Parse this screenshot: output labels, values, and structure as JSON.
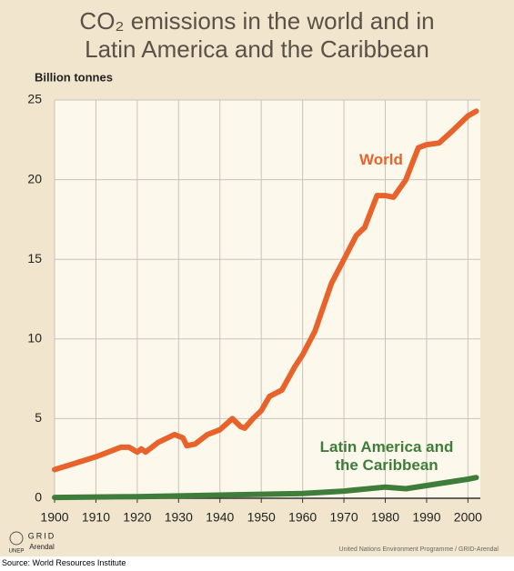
{
  "chart_data": {
    "type": "line",
    "title": "CO₂ emissions in the world and in Latin America and the Caribbean",
    "y_label": "Billion tonnes",
    "source": "Source: World Resources Institute",
    "credit": "United Nations Environment Programme / GRID-Arendal",
    "logo": [
      "UNEP",
      "GRID",
      "Arendal"
    ],
    "xlim": [
      1900,
      2003
    ],
    "xticks": [
      1900,
      1910,
      1920,
      1930,
      1940,
      1950,
      1960,
      1970,
      1980,
      1990,
      2000
    ],
    "ylim": [
      0,
      25
    ],
    "yticks": [
      0,
      5,
      10,
      15,
      20,
      25
    ],
    "grid": true,
    "series": [
      {
        "name": "World",
        "color": "#e8632b",
        "x": [
          1900,
          1905,
          1910,
          1913,
          1916,
          1918,
          1920,
          1921,
          1922,
          1925,
          1929,
          1931,
          1932,
          1934,
          1937,
          1940,
          1943,
          1945,
          1946,
          1948,
          1950,
          1952,
          1955,
          1958,
          1960,
          1963,
          1965,
          1967,
          1970,
          1973,
          1975,
          1978,
          1980,
          1982,
          1985,
          1988,
          1990,
          1993,
          1996,
          2000,
          2002
        ],
        "values": [
          1.8,
          2.2,
          2.6,
          2.9,
          3.2,
          3.2,
          2.9,
          3.1,
          2.9,
          3.5,
          4.0,
          3.8,
          3.3,
          3.4,
          4.0,
          4.3,
          5.0,
          4.5,
          4.4,
          5.0,
          5.5,
          6.4,
          6.8,
          8.2,
          9.0,
          10.5,
          12.0,
          13.5,
          15.0,
          16.5,
          17.0,
          19.0,
          19.0,
          18.9,
          20.0,
          22.0,
          22.2,
          22.3,
          23.0,
          24.0,
          24.3
        ]
      },
      {
        "name": "Latin America and the Caribbean",
        "color": "#3f7d3a",
        "x": [
          1900,
          1920,
          1950,
          1960,
          1970,
          1980,
          1985,
          1990,
          2000,
          2002
        ],
        "values": [
          0.05,
          0.1,
          0.25,
          0.3,
          0.45,
          0.7,
          0.6,
          0.8,
          1.2,
          1.3
        ]
      }
    ]
  }
}
